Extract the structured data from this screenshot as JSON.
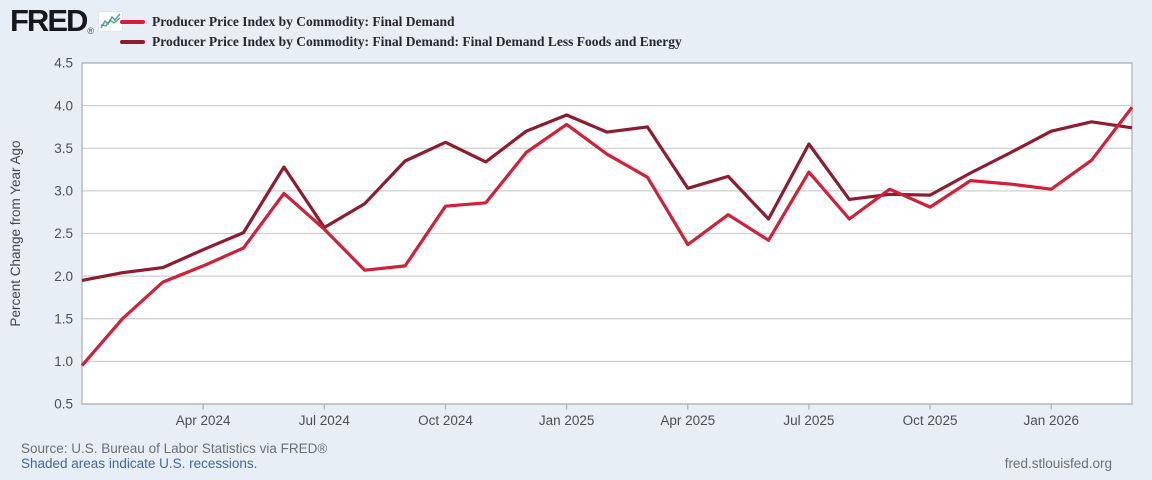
{
  "header": {
    "logo_text": "FRED",
    "registered_mark": "®"
  },
  "footer": {
    "source_text": "Source: U.S. Bureau of Labor Statistics via FRED®",
    "recession_note": "Shaded areas indicate U.S. recessions.",
    "site_url": "fred.stlouisfed.org"
  },
  "colors": {
    "page_background": "#e7eef6",
    "plot_background": "#ffffff",
    "gridline": "#cfcfcf",
    "axis_border": "#b3b3b3",
    "tick_label": "#4d4f52",
    "link_blue": "#41689e",
    "series1_red": "#d0203a",
    "series2_dark_red": "#8e1c30"
  },
  "chart_data": {
    "type": "line",
    "title": "",
    "xlabel": "",
    "ylabel": "Percent Change from Year Ago",
    "ylim": [
      0.5,
      4.5
    ],
    "ytick_step": 0.5,
    "grid": true,
    "legend_position": "top-left",
    "x_months": [
      "Jan 2024",
      "Feb 2024",
      "Mar 2024",
      "Apr 2024",
      "May 2024",
      "Jun 2024",
      "Jul 2024",
      "Aug 2024",
      "Sep 2024",
      "Oct 2024",
      "Nov 2024",
      "Dec 2024",
      "Jan 2025",
      "Feb 2025",
      "Mar 2025",
      "Apr 2025",
      "May 2025",
      "Jun 2025",
      "Jul 2025",
      "Aug 2025",
      "Sep 2025",
      "Oct 2025",
      "Nov 2025",
      "Dec 2025",
      "Jan 2026",
      "Feb 2026",
      "Mar 2026"
    ],
    "xticks": [
      {
        "index": 3,
        "label": "Apr 2024"
      },
      {
        "index": 6,
        "label": "Jul 2024"
      },
      {
        "index": 9,
        "label": "Oct 2024"
      },
      {
        "index": 12,
        "label": "Jan 2025"
      },
      {
        "index": 15,
        "label": "Apr 2025"
      },
      {
        "index": 18,
        "label": "Jul 2025"
      },
      {
        "index": 21,
        "label": "Oct 2025"
      },
      {
        "index": 24,
        "label": "Jan 2026"
      }
    ],
    "series": [
      {
        "name": "Producer Price Index by Commodity: Final Demand",
        "color": "#d0203a",
        "values": [
          0.95,
          1.5,
          1.93,
          2.12,
          2.33,
          2.97,
          2.55,
          2.07,
          2.12,
          2.82,
          2.86,
          3.45,
          3.78,
          3.43,
          3.16,
          2.37,
          2.72,
          2.42,
          3.22,
          2.67,
          3.02,
          2.81,
          3.12,
          3.08,
          3.02,
          3.36,
          3.98
        ]
      },
      {
        "name": "Producer Price Index by Commodity: Final Demand: Final Demand Less Foods and Energy",
        "color": "#8e1c30",
        "values": [
          1.95,
          2.04,
          2.1,
          2.31,
          2.51,
          3.28,
          2.57,
          2.85,
          3.35,
          3.57,
          3.34,
          3.7,
          3.89,
          3.69,
          3.75,
          3.03,
          3.17,
          2.67,
          3.55,
          2.9,
          2.96,
          2.95,
          3.21,
          3.45,
          3.7,
          3.81,
          3.74
        ]
      }
    ]
  }
}
